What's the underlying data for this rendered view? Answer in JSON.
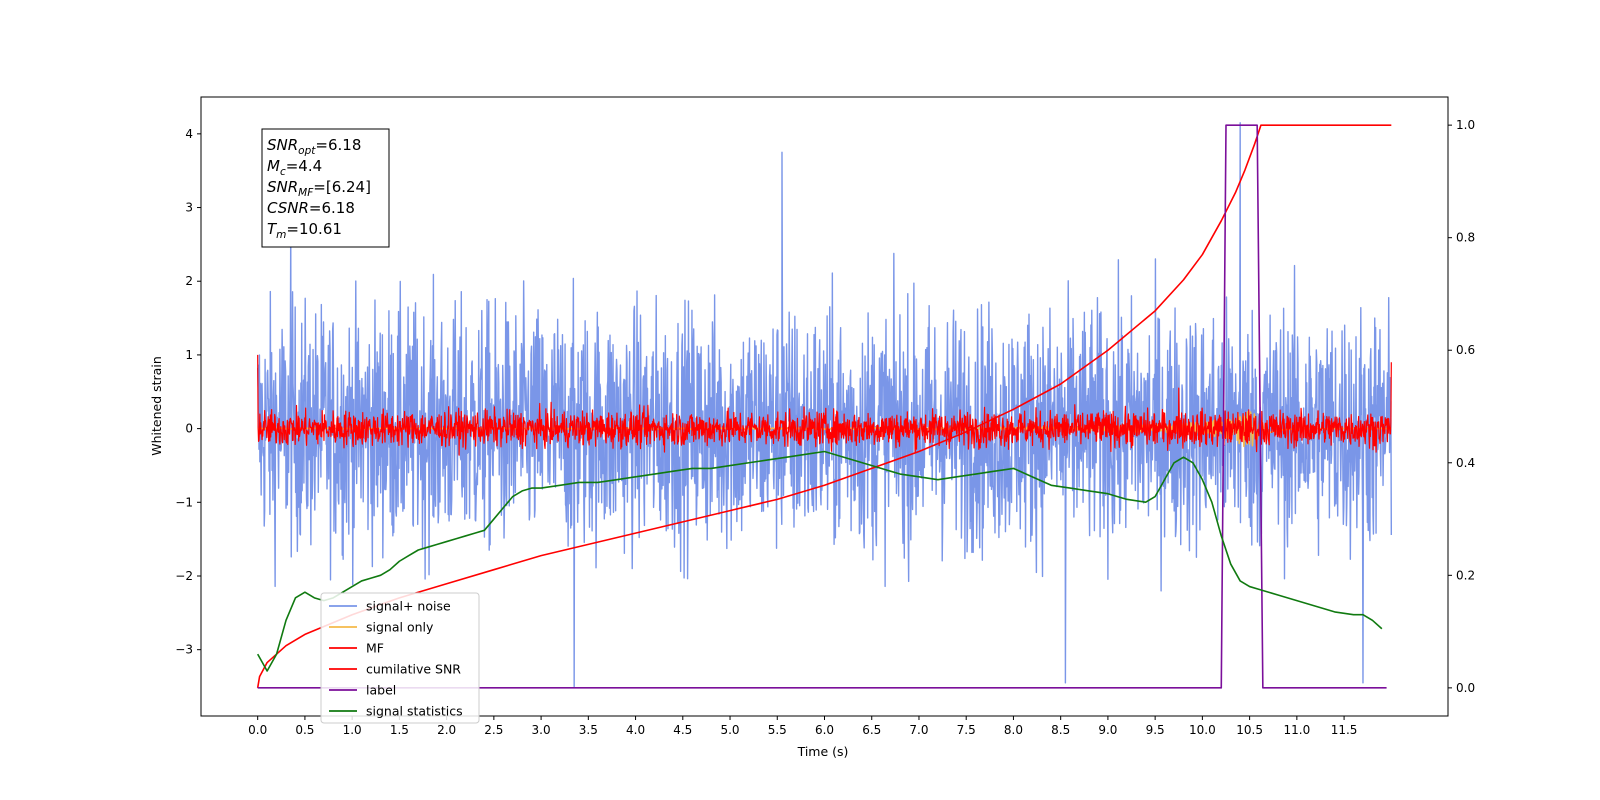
{
  "chart_data": {
    "type": "line",
    "title": "",
    "xlabel": "Time (s)",
    "ylabel": "Whitened strain",
    "xlim": [
      -0.6,
      12.6
    ],
    "ylim": [
      -3.9,
      4.5
    ],
    "y2lim": [
      -0.05,
      1.05
    ],
    "x_ticks": [
      0.0,
      0.5,
      1.0,
      1.5,
      2.0,
      2.5,
      3.0,
      3.5,
      4.0,
      4.5,
      5.0,
      5.5,
      6.0,
      6.5,
      7.0,
      7.5,
      8.0,
      8.5,
      9.0,
      9.5,
      10.0,
      10.5,
      11.0,
      11.5
    ],
    "x_tick_labels": [
      "0.0",
      "0.5",
      "1.0",
      "1.5",
      "2.0",
      "2.5",
      "3.0",
      "3.5",
      "4.0",
      "4.5",
      "5.0",
      "5.5",
      "6.0",
      "6.5",
      "7.0",
      "7.5",
      "8.0",
      "8.5",
      "9.0",
      "9.5",
      "10.0",
      "10.5",
      "11.0",
      "11.5"
    ],
    "y_ticks": [
      4,
      3,
      2,
      1,
      0,
      -1,
      -2,
      -3
    ],
    "y_tick_labels": [
      "4",
      "3",
      "2",
      "1",
      "0",
      "−1",
      "−2",
      "−3"
    ],
    "y2_ticks": [
      1.0,
      0.8,
      0.6,
      0.4,
      0.2,
      0.0
    ],
    "y2_tick_labels": [
      "1.0",
      "0.8",
      "0.6",
      "0.4",
      "0.2",
      "0.0"
    ],
    "annotation": {
      "lines": [
        {
          "main": "SNR",
          "sub": "opt",
          "rest": "=6.18"
        },
        {
          "main": "M",
          "sub": "c",
          "rest": "=4.4"
        },
        {
          "main": "SNR",
          "sub": "MF",
          "rest": "=[6.24]"
        },
        {
          "main": "CSNR",
          "sub": "",
          "rest": "=6.18"
        },
        {
          "main": "T",
          "sub": "m",
          "rest": "=10.61"
        }
      ]
    },
    "series": [
      {
        "name": "signal+ noise",
        "color": "#7a96e8",
        "axis": "left",
        "kind": "noise",
        "x_range": [
          0.0,
          12.0
        ],
        "center": 0.0,
        "typical_amplitude": 1.5,
        "peaks": [
          [
            0.35,
            2.8
          ],
          [
            5.55,
            3.75
          ],
          [
            10.4,
            4.15
          ],
          [
            3.35,
            -3.5
          ],
          [
            8.55,
            -3.45
          ],
          [
            11.7,
            -3.45
          ]
        ]
      },
      {
        "name": "signal only",
        "color": "#f5b94a",
        "axis": "left",
        "kind": "chirp",
        "x_range": [
          0.0,
          12.0
        ],
        "peak_time": 10.5,
        "peak_amplitude": 0.3
      },
      {
        "name": "MF",
        "color": "#ff0000",
        "axis": "left",
        "kind": "noise",
        "x_range": [
          0.0,
          12.0
        ],
        "center": 0.0,
        "typical_amplitude": 0.22,
        "peaks": [
          [
            0.0,
            1.0
          ],
          [
            9.75,
            0.55
          ],
          [
            12.0,
            0.9
          ]
        ]
      },
      {
        "name": "cumilative SNR",
        "color": "#ff0000",
        "axis": "right",
        "x": [
          0.0,
          0.02,
          0.1,
          0.3,
          0.5,
          1.0,
          1.5,
          2.0,
          2.5,
          3.0,
          3.5,
          4.0,
          4.5,
          5.0,
          5.5,
          6.0,
          6.5,
          7.0,
          7.5,
          8.0,
          8.5,
          9.0,
          9.5,
          9.8,
          10.0,
          10.2,
          10.35,
          10.45,
          10.55,
          10.62,
          11.0,
          11.5,
          12.0
        ],
        "y": [
          0.0,
          0.02,
          0.045,
          0.075,
          0.095,
          0.13,
          0.16,
          0.185,
          0.21,
          0.235,
          0.255,
          0.275,
          0.295,
          0.315,
          0.335,
          0.36,
          0.39,
          0.42,
          0.455,
          0.495,
          0.54,
          0.6,
          0.67,
          0.725,
          0.77,
          0.83,
          0.88,
          0.92,
          0.965,
          1.0,
          1.0,
          1.0,
          1.0
        ]
      },
      {
        "name": "label",
        "color": "#7b0f9a",
        "axis": "right",
        "x": [
          0.0,
          10.2,
          10.25,
          10.58,
          10.64,
          11.95
        ],
        "y": [
          0.0,
          0.0,
          1.0,
          1.0,
          0.0,
          0.0
        ]
      },
      {
        "name": "signal statistics",
        "color": "#107a10",
        "axis": "right",
        "x": [
          0.0,
          0.1,
          0.2,
          0.3,
          0.4,
          0.5,
          0.6,
          0.7,
          0.8,
          0.9,
          1.0,
          1.1,
          1.2,
          1.3,
          1.4,
          1.5,
          1.6,
          1.7,
          1.8,
          1.9,
          2.0,
          2.1,
          2.2,
          2.3,
          2.4,
          2.5,
          2.6,
          2.7,
          2.8,
          2.9,
          3.0,
          3.2,
          3.4,
          3.6,
          3.8,
          4.0,
          4.2,
          4.4,
          4.6,
          4.8,
          5.0,
          5.2,
          5.4,
          5.6,
          5.8,
          6.0,
          6.2,
          6.4,
          6.6,
          6.8,
          7.0,
          7.2,
          7.4,
          7.6,
          7.8,
          8.0,
          8.2,
          8.4,
          8.6,
          8.8,
          9.0,
          9.2,
          9.4,
          9.5,
          9.6,
          9.7,
          9.8,
          9.9,
          10.0,
          10.1,
          10.2,
          10.3,
          10.4,
          10.5,
          10.6,
          10.8,
          11.0,
          11.2,
          11.4,
          11.6,
          11.7,
          11.8,
          11.9
        ],
        "y": [
          0.06,
          0.03,
          0.06,
          0.12,
          0.16,
          0.17,
          0.16,
          0.155,
          0.16,
          0.17,
          0.18,
          0.19,
          0.195,
          0.2,
          0.21,
          0.225,
          0.235,
          0.245,
          0.25,
          0.255,
          0.26,
          0.265,
          0.27,
          0.275,
          0.28,
          0.3,
          0.32,
          0.34,
          0.35,
          0.355,
          0.355,
          0.36,
          0.365,
          0.365,
          0.37,
          0.375,
          0.38,
          0.385,
          0.39,
          0.39,
          0.395,
          0.4,
          0.405,
          0.41,
          0.415,
          0.42,
          0.41,
          0.4,
          0.39,
          0.38,
          0.375,
          0.37,
          0.375,
          0.38,
          0.385,
          0.39,
          0.375,
          0.36,
          0.355,
          0.35,
          0.345,
          0.335,
          0.33,
          0.34,
          0.37,
          0.4,
          0.41,
          0.4,
          0.37,
          0.33,
          0.27,
          0.22,
          0.19,
          0.18,
          0.175,
          0.165,
          0.155,
          0.145,
          0.135,
          0.13,
          0.13,
          0.12,
          0.105
        ]
      }
    ],
    "legend": {
      "placement": "lower-left",
      "entries": [
        {
          "label": "signal+ noise",
          "color": "#7a96e8"
        },
        {
          "label": "signal only",
          "color": "#f5b94a"
        },
        {
          "label": "MF",
          "color": "#ff0000"
        },
        {
          "label": "cumilative SNR",
          "color": "#ff0000"
        },
        {
          "label": "label",
          "color": "#7b0f9a"
        },
        {
          "label": "signal statistics",
          "color": "#107a10"
        }
      ]
    }
  }
}
